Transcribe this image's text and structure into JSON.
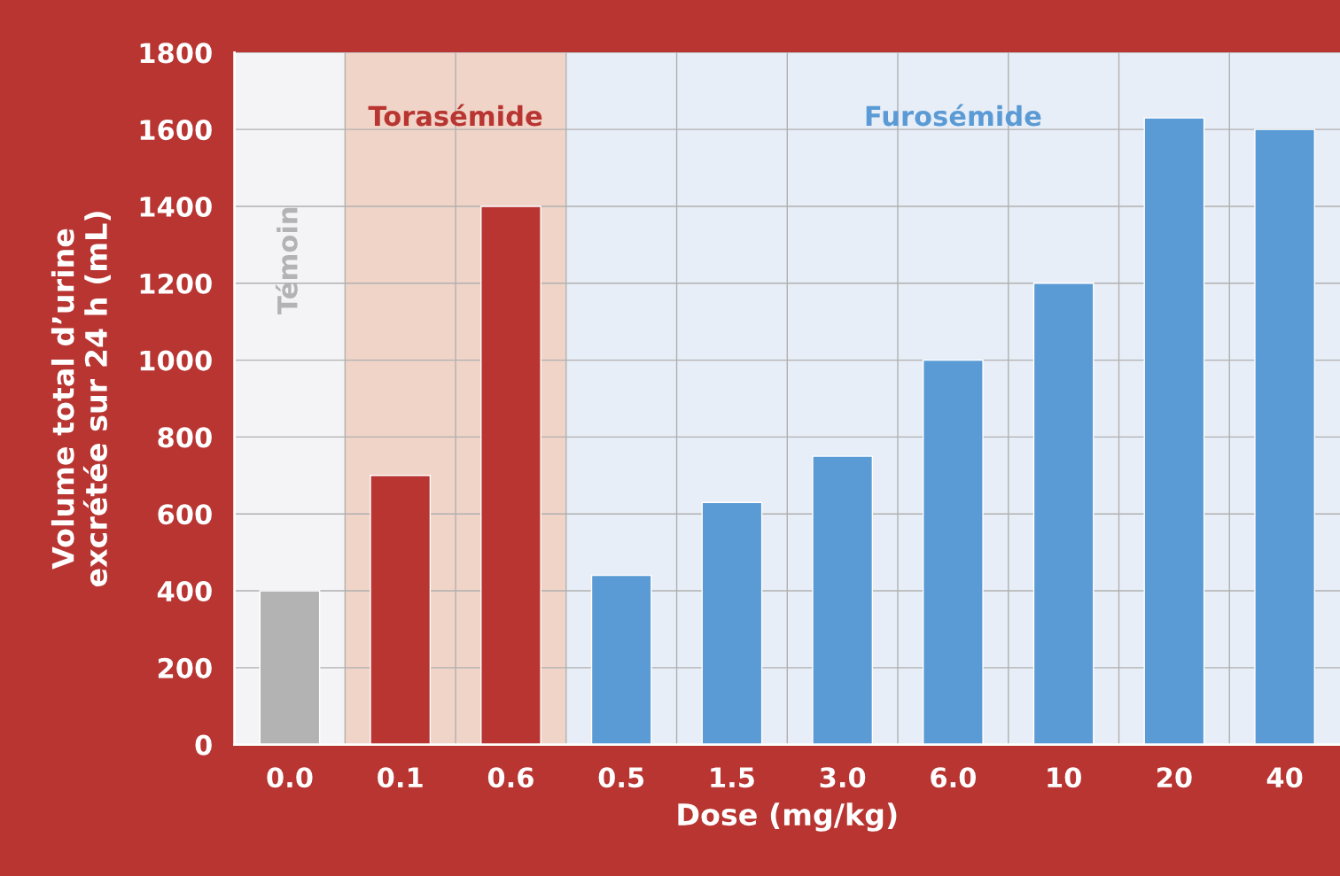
{
  "chart_data": {
    "type": "bar",
    "xlabel": "Dose (mg/kg)",
    "ylabel": "Volume total d’urine\nexcrétée sur 24 h (mL)",
    "categories": [
      "0.0",
      "0.1",
      "0.6",
      "0.5",
      "1.5",
      "3.0",
      "6.0",
      "10",
      "20",
      "40"
    ],
    "values": [
      400,
      700,
      1400,
      440,
      630,
      750,
      1000,
      1200,
      1630,
      1600
    ],
    "colors": [
      "#b3b3b3",
      "#b83532",
      "#b83532",
      "#5b9bd5",
      "#5b9bd5",
      "#5b9bd5",
      "#5b9bd5",
      "#5b9bd5",
      "#5b9bd5",
      "#5b9bd5"
    ],
    "ylim": [
      0,
      1800
    ],
    "yticks": [
      0,
      200,
      400,
      600,
      800,
      1000,
      1200,
      1400,
      1600,
      1800
    ],
    "grid": true,
    "bands": [
      {
        "axis": "x",
        "from": "0.0",
        "to": "0.0",
        "label": "Témoin",
        "color": "#f4f4f6"
      },
      {
        "axis": "x",
        "from": "0.1",
        "to": "0.6",
        "label": "Torasémide",
        "color": "#f0d4c8"
      },
      {
        "axis": "x",
        "from": "0.5",
        "to": "40",
        "label": "Furosémide",
        "color": "#e8eef7"
      }
    ]
  }
}
